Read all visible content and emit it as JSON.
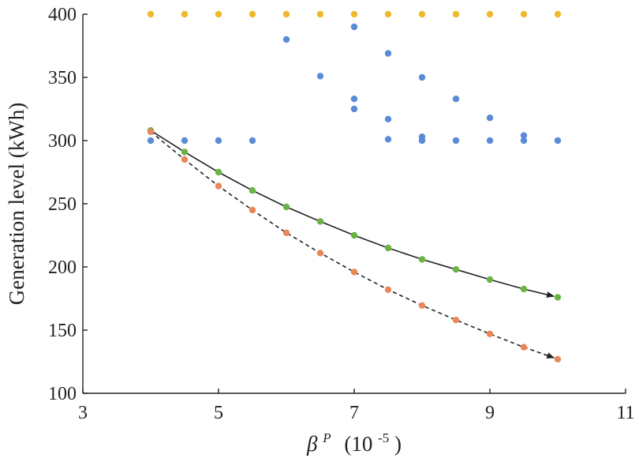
{
  "chart_data": {
    "type": "scatter",
    "title": "",
    "xlabel": {
      "symbol": "β",
      "superscript": "P",
      "units": "(10",
      "units_exponent": "-5",
      "units_close": ")"
    },
    "ylabel": "Generation level (kWh)",
    "xlim": [
      3,
      11
    ],
    "ylim": [
      100,
      400
    ],
    "xticks": [
      "3",
      "5",
      "7",
      "9",
      "11"
    ],
    "yticks": [
      "100",
      "150",
      "200",
      "250",
      "300",
      "350",
      "400"
    ],
    "grid": false,
    "legend": "none",
    "series": [
      {
        "color": "#f0b92d",
        "style": "markers",
        "points": [
          [
            4,
            400
          ],
          [
            4.5,
            400
          ],
          [
            5,
            400
          ],
          [
            5.5,
            400
          ],
          [
            6,
            400
          ],
          [
            6.5,
            400
          ],
          [
            7,
            400
          ],
          [
            7.5,
            400
          ],
          [
            8,
            400
          ],
          [
            8.5,
            400
          ],
          [
            9,
            400
          ],
          [
            9.5,
            400
          ],
          [
            10,
            400
          ]
        ]
      },
      {
        "color": "#5b8bd6",
        "style": "markers",
        "points": [
          [
            4,
            300
          ],
          [
            4.5,
            300
          ],
          [
            5,
            300
          ],
          [
            5.5,
            300
          ],
          [
            6,
            380
          ],
          [
            6.5,
            351
          ],
          [
            7,
            390
          ],
          [
            7,
            333
          ],
          [
            7,
            325
          ],
          [
            7.5,
            369
          ],
          [
            7.5,
            317
          ],
          [
            7.5,
            301
          ],
          [
            8,
            350
          ],
          [
            8,
            303
          ],
          [
            8,
            300
          ],
          [
            8.5,
            333
          ],
          [
            8.5,
            300
          ],
          [
            9,
            318
          ],
          [
            9,
            300
          ],
          [
            9.5,
            304
          ],
          [
            9.5,
            300
          ],
          [
            10,
            300
          ]
        ]
      },
      {
        "color": "#6ab344",
        "style": "solid-line-markers",
        "line_color": "#222222",
        "points": [
          [
            4,
            308
          ],
          [
            4.5,
            291
          ],
          [
            5,
            275
          ],
          [
            5.5,
            260.5
          ],
          [
            6,
            247.5
          ],
          [
            6.5,
            236
          ],
          [
            7,
            225
          ],
          [
            7.5,
            215
          ],
          [
            8,
            206
          ],
          [
            8.5,
            198
          ],
          [
            9,
            190
          ],
          [
            9.5,
            182.5
          ],
          [
            10,
            176
          ]
        ]
      },
      {
        "color": "#e8875a",
        "style": "dashed-line-markers",
        "line_color": "#222222",
        "points": [
          [
            4,
            307
          ],
          [
            4.5,
            285
          ],
          [
            5,
            264
          ],
          [
            5.5,
            245
          ],
          [
            6,
            227
          ],
          [
            6.5,
            211
          ],
          [
            7,
            196
          ],
          [
            7.5,
            182
          ],
          [
            8,
            169.5
          ],
          [
            8.5,
            158
          ],
          [
            9,
            147
          ],
          [
            9.5,
            136.5
          ],
          [
            10,
            127
          ]
        ]
      }
    ]
  }
}
